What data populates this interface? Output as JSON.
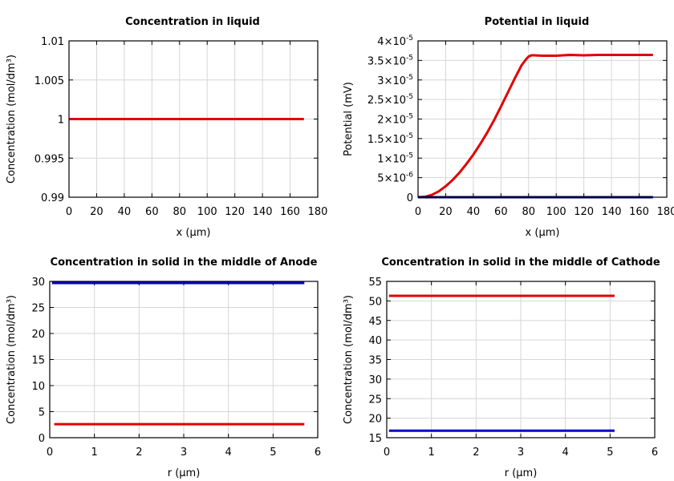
{
  "chart_data": [
    {
      "type": "line",
      "title": "Concentration in liquid",
      "xlabel": "x (µm)",
      "ylabel": "Concentration (mol/dm³)",
      "xlim": [
        0,
        180
      ],
      "ylim": [
        0.99,
        1.01
      ],
      "xticks": [
        0,
        20,
        40,
        60,
        80,
        100,
        120,
        140,
        160,
        180
      ],
      "yticks": [
        0.99,
        0.995,
        1,
        1.005,
        1.01
      ],
      "xtick_labels": [
        "0",
        "20",
        "40",
        "60",
        "80",
        "100",
        "120",
        "140",
        "160",
        "180"
      ],
      "ytick_labels": [
        "0.99",
        "0.995",
        "1",
        "1.005",
        "1.01"
      ],
      "grid": true,
      "series": [
        {
          "color": "#e00000",
          "x": [
            0,
            170
          ],
          "y": [
            1.0,
            1.0
          ]
        }
      ]
    },
    {
      "type": "line",
      "title": "Potential in liquid",
      "xlabel": "x (µm)",
      "ylabel": "Potential (mV)",
      "xlim": [
        0,
        180
      ],
      "ylim": [
        0,
        4e-05
      ],
      "xticks": [
        0,
        20,
        40,
        60,
        80,
        100,
        120,
        140,
        160,
        180
      ],
      "yticks": [
        0,
        5e-06,
        1e-05,
        1.5e-05,
        2e-05,
        2.5e-05,
        3e-05,
        3.5e-05,
        4e-05
      ],
      "xtick_labels": [
        "0",
        "20",
        "40",
        "60",
        "80",
        "100",
        "120",
        "140",
        "160",
        "180"
      ],
      "ytick_labels": [
        {
          "base": "0",
          "exp": ""
        },
        {
          "base": "5×10",
          "exp": "-6"
        },
        {
          "base": "1×10",
          "exp": "-5"
        },
        {
          "base": "1.5×10",
          "exp": "-5"
        },
        {
          "base": "2×10",
          "exp": "-5"
        },
        {
          "base": "2.5×10",
          "exp": "-5"
        },
        {
          "base": "3×10",
          "exp": "-5"
        },
        {
          "base": "3.5×10",
          "exp": "-5"
        },
        {
          "base": "4×10",
          "exp": "-5"
        }
      ],
      "grid": true,
      "series": [
        {
          "color": "#e00000",
          "x": [
            0,
            5,
            10,
            15,
            20,
            25,
            30,
            35,
            40,
            45,
            50,
            55,
            60,
            65,
            70,
            75,
            78,
            80,
            82,
            84,
            90,
            100,
            110,
            120,
            130,
            140,
            150,
            160,
            170
          ],
          "y": [
            0,
            1e-07,
            6e-07,
            1.5e-06,
            2.8e-06,
            4.4e-06,
            6.3e-06,
            8.5e-06,
            1.09e-05,
            1.36e-05,
            1.65e-05,
            1.97e-05,
            2.32e-05,
            2.68e-05,
            3.04e-05,
            3.38e-05,
            3.52e-05,
            3.6e-05,
            3.63e-05,
            3.63e-05,
            3.62e-05,
            3.62e-05,
            3.64e-05,
            3.63e-05,
            3.64e-05,
            3.64e-05,
            3.64e-05,
            3.64e-05,
            3.64e-05
          ]
        },
        {
          "color": "#00007a",
          "x": [
            0,
            170
          ],
          "y": [
            0,
            0
          ]
        }
      ]
    },
    {
      "type": "line",
      "title": "Concentration in solid in the middle of Anode",
      "xlabel": "r (µm)",
      "ylabel": "Concentration (mol/dm³)",
      "xlim": [
        0,
        6
      ],
      "ylim": [
        0,
        30
      ],
      "xticks": [
        0,
        1,
        2,
        3,
        4,
        5,
        6
      ],
      "yticks": [
        0,
        5,
        10,
        15,
        20,
        25,
        30
      ],
      "xtick_labels": [
        "0",
        "1",
        "2",
        "3",
        "4",
        "5",
        "6"
      ],
      "ytick_labels": [
        "0",
        "5",
        "10",
        "15",
        "20",
        "25",
        "30"
      ],
      "grid": true,
      "series": [
        {
          "color": "#0000cc",
          "x": [
            0.05,
            5.7
          ],
          "y": [
            29.7,
            29.7
          ]
        },
        {
          "color": "#e00000",
          "x": [
            0.1,
            5.7
          ],
          "y": [
            2.6,
            2.6
          ]
        }
      ]
    },
    {
      "type": "line",
      "title": "Concentration in solid in the middle of Cathode",
      "xlabel": "r (µm)",
      "ylabel": "Concentration (mol/dm³)",
      "xlim": [
        0,
        6
      ],
      "ylim": [
        15,
        55
      ],
      "xticks": [
        0,
        1,
        2,
        3,
        4,
        5,
        6
      ],
      "yticks": [
        15,
        20,
        25,
        30,
        35,
        40,
        45,
        50,
        55
      ],
      "xtick_labels": [
        "0",
        "1",
        "2",
        "3",
        "4",
        "5",
        "6"
      ],
      "ytick_labels": [
        "15",
        "20",
        "25",
        "30",
        "35",
        "40",
        "45",
        "50",
        "55"
      ],
      "grid": true,
      "series": [
        {
          "color": "#e00000",
          "x": [
            0.05,
            5.1
          ],
          "y": [
            51.3,
            51.3
          ]
        },
        {
          "color": "#0000cc",
          "x": [
            0.05,
            5.1
          ],
          "y": [
            16.8,
            16.8
          ]
        }
      ]
    }
  ]
}
